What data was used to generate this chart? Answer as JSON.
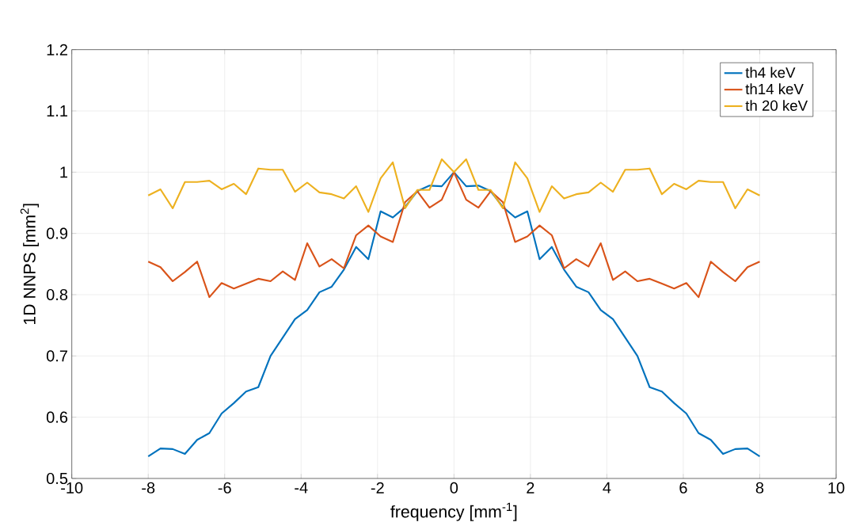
{
  "chart_data": {
    "type": "line",
    "xlabel": "frequency [mm$^{-1}$]",
    "ylabel": "1D NNPS [mm$^{2}$]",
    "x": [
      -8,
      -7.68,
      -7.36,
      -7.04,
      -6.72,
      -6.4,
      -6.08,
      -5.76,
      -5.44,
      -5.12,
      -4.8,
      -4.48,
      -4.16,
      -3.84,
      -3.52,
      -3.2,
      -2.88,
      -2.56,
      -2.24,
      -1.92,
      -1.6,
      -1.28,
      -0.96,
      -0.64,
      -0.32,
      0,
      0.32,
      0.64,
      0.96,
      1.28,
      1.6,
      1.92,
      2.24,
      2.56,
      2.88,
      3.2,
      3.52,
      3.84,
      4.16,
      4.48,
      4.8,
      5.12,
      5.44,
      5.76,
      6.08,
      6.4,
      6.72,
      7.04,
      7.36,
      7.68,
      8
    ],
    "series": [
      {
        "name": "th4 keV",
        "color": "#0072bd",
        "values": [
          0.536,
          0.549,
          0.548,
          0.54,
          0.563,
          0.574,
          0.606,
          0.623,
          0.642,
          0.649,
          0.7,
          0.73,
          0.76,
          0.775,
          0.804,
          0.813,
          0.841,
          0.878,
          0.858,
          0.936,
          0.926,
          0.943,
          0.969,
          0.978,
          0.977,
          1.0,
          0.977,
          0.978,
          0.969,
          0.943,
          0.926,
          0.936,
          0.858,
          0.878,
          0.841,
          0.813,
          0.804,
          0.775,
          0.76,
          0.73,
          0.7,
          0.649,
          0.642,
          0.623,
          0.606,
          0.574,
          0.563,
          0.54,
          0.548,
          0.549,
          0.536
        ]
      },
      {
        "name": "th14 keV",
        "color": "#d95319",
        "values": [
          0.854,
          0.845,
          0.822,
          0.837,
          0.854,
          0.796,
          0.819,
          0.81,
          0.818,
          0.826,
          0.822,
          0.838,
          0.824,
          0.884,
          0.846,
          0.858,
          0.843,
          0.897,
          0.913,
          0.895,
          0.886,
          0.951,
          0.969,
          0.942,
          0.955,
          1.0,
          0.955,
          0.942,
          0.969,
          0.951,
          0.886,
          0.895,
          0.913,
          0.897,
          0.843,
          0.858,
          0.846,
          0.884,
          0.824,
          0.838,
          0.822,
          0.826,
          0.818,
          0.81,
          0.819,
          0.796,
          0.854,
          0.837,
          0.822,
          0.845,
          0.854
        ]
      },
      {
        "name": "th 20 keV",
        "color": "#edb120",
        "values": [
          0.962,
          0.972,
          0.941,
          0.984,
          0.984,
          0.986,
          0.972,
          0.981,
          0.964,
          1.006,
          1.004,
          1.004,
          0.968,
          0.983,
          0.967,
          0.964,
          0.957,
          0.977,
          0.935,
          0.99,
          1.016,
          0.941,
          0.971,
          0.971,
          1.021,
          1.0,
          1.021,
          0.971,
          0.971,
          0.941,
          1.016,
          0.99,
          0.935,
          0.977,
          0.957,
          0.964,
          0.967,
          0.983,
          0.968,
          1.004,
          1.004,
          1.006,
          0.964,
          0.981,
          0.972,
          0.986,
          0.984,
          0.984,
          0.941,
          0.972,
          0.962
        ]
      }
    ],
    "xlim": [
      -10,
      10
    ],
    "xticks": [
      -10,
      -8,
      -6,
      -4,
      -2,
      0,
      2,
      4,
      6,
      8,
      10
    ],
    "ylim": [
      0.5,
      1.2
    ],
    "yticks": [
      0.5,
      0.6,
      0.7,
      0.8,
      0.9,
      1,
      1.1,
      1.2
    ],
    "grid": true,
    "legend": "top right",
    "marker": "none",
    "line_style": "solid"
  }
}
